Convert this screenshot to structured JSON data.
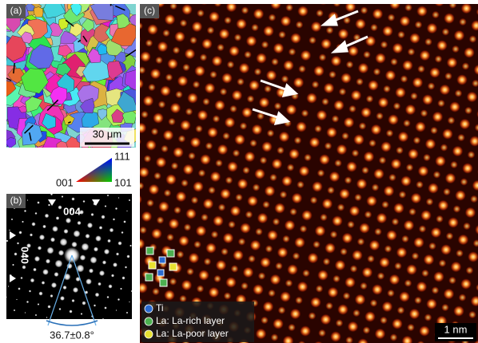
{
  "panels": {
    "a": {
      "label": "(a)",
      "scale_bar": "30 μm"
    },
    "color_key": {
      "top": "111",
      "left": "001",
      "right": "101"
    },
    "b": {
      "label": "(b)",
      "spot_top": "004",
      "spot_left": "040",
      "angle": "36.7±0.8°"
    },
    "c": {
      "label": "(c)",
      "legend": [
        "Ti",
        "La: La-rich layer",
        "La: La-poor layer"
      ],
      "scale_bar": "1 nm"
    }
  }
}
